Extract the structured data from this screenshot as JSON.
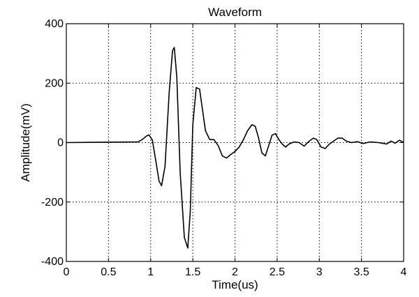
{
  "chart_data": {
    "type": "line",
    "title": "Waveform",
    "xlabel": "Time(us)",
    "ylabel": "Amplitude(mV)",
    "xlim": [
      0,
      4
    ],
    "ylim": [
      -400,
      400
    ],
    "xticks": [
      0,
      0.5,
      1,
      1.5,
      2,
      2.5,
      3,
      3.5,
      4
    ],
    "yticks": [
      -400,
      -200,
      0,
      200,
      400
    ],
    "xtick_labels": [
      "0",
      "0.5",
      "1",
      "1.5",
      "2",
      "2.5",
      "3",
      "3.5",
      "4"
    ],
    "ytick_labels": [
      "-400",
      "-200",
      "0",
      "200",
      "400"
    ],
    "grid": true,
    "series": [
      {
        "color": "#000000",
        "x": [
          0,
          0.85,
          0.9,
          0.95,
          0.98,
          1.02,
          1.06,
          1.1,
          1.13,
          1.17,
          1.22,
          1.26,
          1.28,
          1.31,
          1.35,
          1.4,
          1.44,
          1.47,
          1.5,
          1.54,
          1.58,
          1.61,
          1.65,
          1.7,
          1.75,
          1.8,
          1.85,
          1.9,
          1.95,
          2.0,
          2.05,
          2.1,
          2.15,
          2.2,
          2.24,
          2.28,
          2.32,
          2.36,
          2.4,
          2.44,
          2.48,
          2.52,
          2.56,
          2.6,
          2.64,
          2.7,
          2.76,
          2.82,
          2.88,
          2.93,
          2.97,
          3.02,
          3.07,
          3.12,
          3.17,
          3.22,
          3.27,
          3.32,
          3.38,
          3.45,
          3.52,
          3.6,
          3.7,
          3.8,
          3.85,
          3.9,
          3.95,
          4.0
        ],
        "y": [
          0,
          2,
          10,
          22,
          26,
          8,
          -60,
          -130,
          -145,
          -80,
          170,
          310,
          320,
          220,
          -100,
          -320,
          -355,
          -230,
          60,
          185,
          180,
          120,
          40,
          10,
          10,
          -10,
          -45,
          -52,
          -40,
          -30,
          -15,
          10,
          40,
          60,
          55,
          15,
          -35,
          -45,
          -10,
          25,
          30,
          10,
          -5,
          -15,
          -5,
          2,
          0,
          -12,
          5,
          15,
          10,
          -15,
          -20,
          -5,
          5,
          15,
          15,
          5,
          0,
          3,
          -3,
          2,
          0,
          -5,
          5,
          -2,
          8,
          0
        ]
      }
    ]
  }
}
